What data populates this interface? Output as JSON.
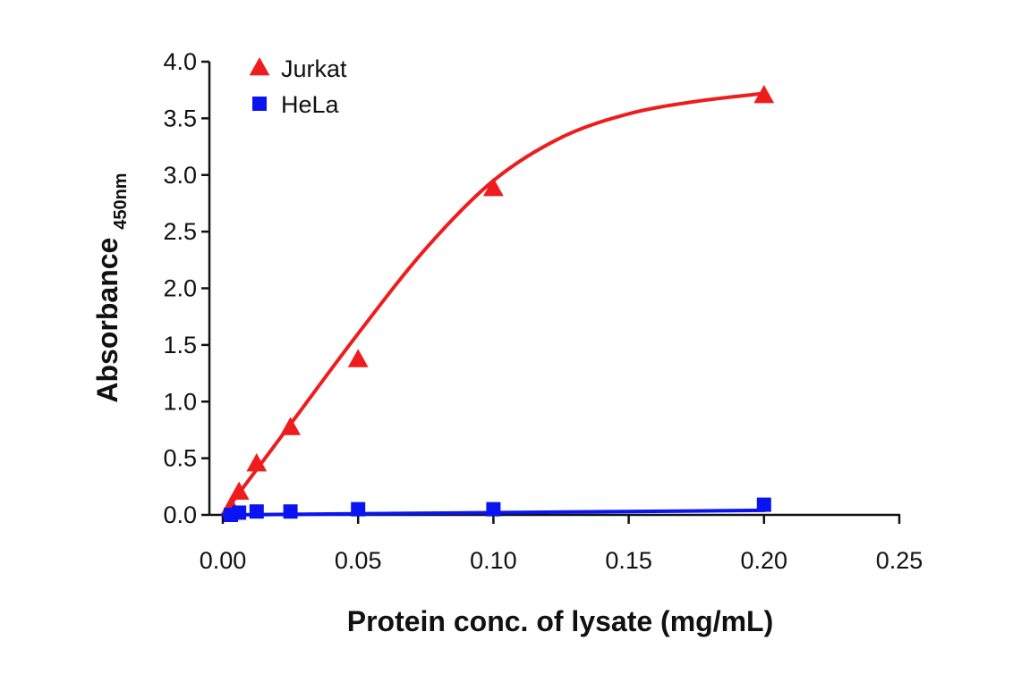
{
  "chart_data": {
    "type": "scatter",
    "title": "",
    "xlabel": "Protein conc. of lysate (mg/mL)",
    "ylabel_main": "Absorbance",
    "ylabel_subscript": "450nm",
    "xlim": [
      0,
      0.25
    ],
    "ylim": [
      0,
      4.0
    ],
    "x_ticks": [
      0.0,
      0.05,
      0.1,
      0.15,
      0.2,
      0.25
    ],
    "x_tick_labels": [
      "0.00",
      "0.05",
      "0.10",
      "0.15",
      "0.20",
      "0.25"
    ],
    "y_ticks": [
      0.0,
      0.5,
      1.0,
      1.5,
      2.0,
      2.5,
      3.0,
      3.5,
      4.0
    ],
    "y_tick_labels": [
      "0.0",
      "0.5",
      "1.0",
      "1.5",
      "2.0",
      "2.5",
      "3.0",
      "3.5",
      "4.0"
    ],
    "grid": false,
    "legend_position": "top-left",
    "series": [
      {
        "name": "Jurkat",
        "marker": "triangle",
        "color": "#ee1c1c",
        "x": [
          0.003,
          0.006,
          0.0125,
          0.025,
          0.05,
          0.1,
          0.2
        ],
        "y": [
          0.07,
          0.2,
          0.45,
          0.77,
          1.37,
          2.88,
          3.7
        ],
        "fit_x": [
          0.0,
          0.0125,
          0.025,
          0.05,
          0.075,
          0.1,
          0.125,
          0.15,
          0.175,
          0.2
        ],
        "fit_y": [
          0.0,
          0.4,
          0.8,
          1.6,
          2.35,
          2.95,
          3.33,
          3.54,
          3.65,
          3.72
        ]
      },
      {
        "name": "HeLa",
        "marker": "square",
        "color": "#0a14f0",
        "x": [
          0.003,
          0.006,
          0.0125,
          0.025,
          0.05,
          0.1,
          0.2
        ],
        "y": [
          0.0,
          0.02,
          0.03,
          0.03,
          0.05,
          0.05,
          0.09
        ],
        "fit_x": [
          0.0,
          0.2
        ],
        "fit_y": [
          0.0,
          0.04
        ]
      }
    ]
  }
}
